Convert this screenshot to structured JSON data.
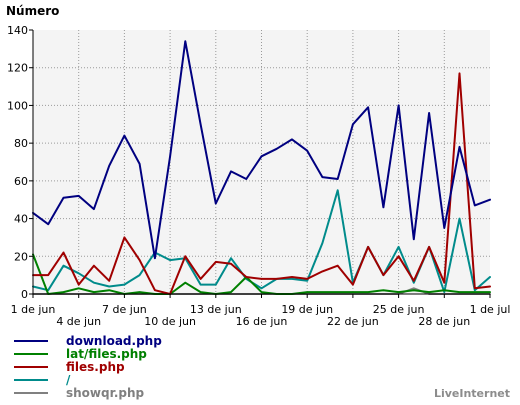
{
  "chart_data": {
    "type": "line",
    "ylabel": "Número",
    "ylim": [
      0,
      140
    ],
    "yticks": [
      0,
      20,
      40,
      60,
      80,
      100,
      120,
      140
    ],
    "x_count": 31,
    "x_ticks": [
      {
        "i": 0,
        "label": "1 de jun",
        "row": 0
      },
      {
        "i": 3,
        "label": "4 de jun",
        "row": 1
      },
      {
        "i": 6,
        "label": "7 de jun",
        "row": 0
      },
      {
        "i": 9,
        "label": "10 de jun",
        "row": 1
      },
      {
        "i": 12,
        "label": "13 de jun",
        "row": 0
      },
      {
        "i": 15,
        "label": "16 de jun",
        "row": 1
      },
      {
        "i": 18,
        "label": "19 de jun",
        "row": 0
      },
      {
        "i": 21,
        "label": "22 de jun",
        "row": 1
      },
      {
        "i": 24,
        "label": "25 de jun",
        "row": 0
      },
      {
        "i": 27,
        "label": "28 de jun",
        "row": 1
      },
      {
        "i": 30,
        "label": "1 de jul",
        "row": 0
      }
    ],
    "grid": true,
    "series": [
      {
        "name": "download.php",
        "color": "#000080",
        "values": [
          43,
          37,
          51,
          52,
          45,
          68,
          84,
          69,
          19,
          73,
          134,
          90,
          48,
          65,
          61,
          73,
          77,
          82,
          76,
          62,
          61,
          90,
          99,
          46,
          100,
          29,
          96,
          35,
          78,
          47,
          50
        ]
      },
      {
        "name": "lat/files.php",
        "color": "#008000",
        "values": [
          21,
          0,
          1,
          3,
          1,
          2,
          0,
          1,
          0,
          0,
          6,
          1,
          0,
          1,
          9,
          1,
          0,
          0,
          1,
          1,
          1,
          1,
          1,
          2,
          1,
          2,
          1,
          2,
          1,
          1,
          1
        ]
      },
      {
        "name": "files.php",
        "color": "#a00000",
        "values": [
          10,
          10,
          22,
          5,
          15,
          7,
          30,
          18,
          2,
          0,
          20,
          8,
          17,
          16,
          9,
          8,
          8,
          9,
          8,
          12,
          15,
          5,
          25,
          10,
          20,
          7,
          25,
          6,
          117,
          3,
          4
        ]
      },
      {
        "name": "/",
        "color": "#008b8b",
        "values": [
          4,
          2,
          15,
          11,
          6,
          4,
          5,
          10,
          22,
          18,
          19,
          5,
          5,
          19,
          8,
          3,
          8,
          8,
          7,
          27,
          55,
          6,
          25,
          10,
          25,
          6,
          25,
          1,
          40,
          2,
          9
        ]
      },
      {
        "name": "showqr.php",
        "color": "#808080",
        "values": [
          0,
          0,
          0,
          0,
          0,
          0,
          0,
          0,
          0,
          0,
          0,
          0,
          0,
          0,
          0,
          0,
          0,
          0,
          0,
          0,
          0,
          0,
          0,
          0,
          0,
          3,
          0,
          0,
          0,
          0,
          0
        ]
      }
    ]
  },
  "brand": "LiveInternet"
}
